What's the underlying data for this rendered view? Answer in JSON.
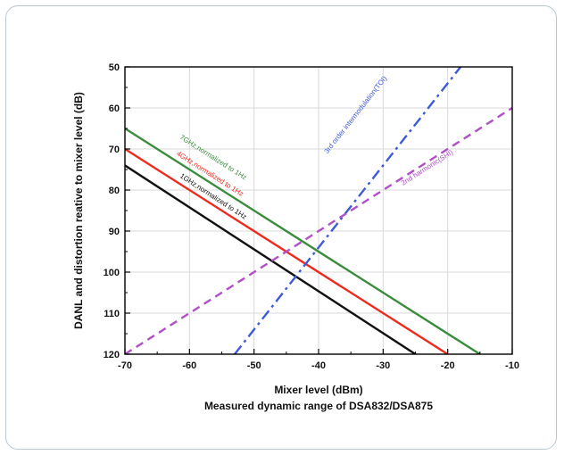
{
  "caption": "Measured dynamic range of DSA832/DSA875",
  "chart_data": {
    "type": "line",
    "title": "",
    "xlabel": "Mixer level (dBm)",
    "ylabel": "DANL and distortion reative to mixer level (dB)",
    "xlim": [
      -70,
      -10
    ],
    "ylim": [
      50,
      120
    ],
    "y_inverted": true,
    "grid": true,
    "x_ticks": [
      "-70",
      "-60",
      "-50",
      "-40",
      "-30",
      "-20",
      "-10"
    ],
    "y_ticks": [
      "50",
      "60",
      "70",
      "80",
      "90",
      "100",
      "110",
      "120"
    ],
    "series": [
      {
        "id": "s7g",
        "color": "#3a8c3c",
        "dash": "solid",
        "x": [
          -70,
          -15
        ],
        "y": [
          65,
          120
        ],
        "label": "7GHz,normalized to 1Hz",
        "label_at": [
          -56.5,
          72.5
        ]
      },
      {
        "id": "s4g",
        "color": "#ee2a1c",
        "dash": "solid",
        "x": [
          -70,
          -20
        ],
        "y": [
          70,
          120
        ],
        "label": "4GHz,normalized to 1Hz",
        "label_at": [
          -57,
          76.5
        ]
      },
      {
        "id": "s1g",
        "color": "#111111",
        "dash": "solid",
        "x": [
          -70,
          -25
        ],
        "y": [
          74,
          120
        ],
        "label": "1GHz,normalized to 1Hz",
        "label_at": [
          -56.5,
          82
        ]
      },
      {
        "id": "toi",
        "color": "#3d5bd6",
        "dash": "dashdot",
        "x": [
          -53,
          -18
        ],
        "y": [
          120,
          50
        ],
        "label": "3rd order intermodulation(TOI)",
        "label_at": [
          -34,
          62
        ]
      },
      {
        "id": "shi",
        "color": "#b04fc6",
        "dash": "dashed",
        "x": [
          -70,
          -10
        ],
        "y": [
          120,
          60
        ],
        "label": "2nd harmonic(SHI)",
        "label_at": [
          -23,
          75
        ]
      }
    ]
  }
}
